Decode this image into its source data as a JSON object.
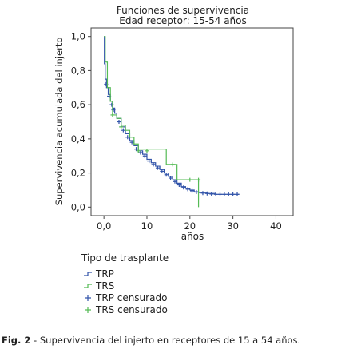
{
  "chart_data": {
    "type": "line",
    "title": "Funciones de supervivencia",
    "subtitle": "Edad receptor: 15-54 años",
    "xlabel": "años",
    "ylabel": "Supervivencia acumulada del injerto",
    "xlim": [
      -3,
      44
    ],
    "ylim": [
      -0.05,
      1.05
    ],
    "xticks": [
      0,
      10,
      20,
      30,
      40
    ],
    "xtick_labels": [
      "0,0",
      "10",
      "20",
      "30",
      "40"
    ],
    "yticks": [
      0.0,
      0.2,
      0.4,
      0.6,
      0.8,
      1.0
    ],
    "ytick_labels": [
      "0,0",
      "0,2",
      "0,4",
      "0,6",
      "0,8",
      "1,0"
    ],
    "grid": false,
    "legend_title": "Tipo de trasplante",
    "legend_position": "bottom-left",
    "series": [
      {
        "name": "TRP",
        "style": "step",
        "color": "#3355aa",
        "points": [
          [
            0,
            1.0
          ],
          [
            0.1,
            0.84
          ],
          [
            0.3,
            0.75
          ],
          [
            0.6,
            0.7
          ],
          [
            1,
            0.66
          ],
          [
            1.5,
            0.62
          ],
          [
            2,
            0.58
          ],
          [
            2.5,
            0.55
          ],
          [
            3,
            0.52
          ],
          [
            4,
            0.47
          ],
          [
            5,
            0.43
          ],
          [
            6,
            0.39
          ],
          [
            7,
            0.36
          ],
          [
            8,
            0.33
          ],
          [
            9,
            0.31
          ],
          [
            10,
            0.28
          ],
          [
            11,
            0.26
          ],
          [
            12,
            0.24
          ],
          [
            13,
            0.22
          ],
          [
            14,
            0.2
          ],
          [
            15,
            0.18
          ],
          [
            16,
            0.16
          ],
          [
            17,
            0.14
          ],
          [
            18,
            0.12
          ],
          [
            19,
            0.11
          ],
          [
            20,
            0.1
          ],
          [
            21,
            0.09
          ],
          [
            22,
            0.085
          ],
          [
            24,
            0.08
          ],
          [
            26,
            0.075
          ],
          [
            31.5,
            0.075
          ]
        ],
        "censored": [
          [
            0.5,
            0.72
          ],
          [
            1.2,
            0.65
          ],
          [
            1.8,
            0.6
          ],
          [
            2.2,
            0.57
          ],
          [
            3.5,
            0.5
          ],
          [
            4.5,
            0.45
          ],
          [
            5.5,
            0.41
          ],
          [
            6.5,
            0.38
          ],
          [
            7.5,
            0.34
          ],
          [
            8.5,
            0.32
          ],
          [
            9.5,
            0.3
          ],
          [
            10.5,
            0.27
          ],
          [
            11.5,
            0.25
          ],
          [
            12.5,
            0.23
          ],
          [
            13.5,
            0.21
          ],
          [
            14.5,
            0.19
          ],
          [
            15.5,
            0.17
          ],
          [
            16.5,
            0.15
          ],
          [
            17.5,
            0.13
          ],
          [
            18.5,
            0.115
          ],
          [
            19.5,
            0.105
          ],
          [
            20.5,
            0.095
          ],
          [
            21.5,
            0.088
          ],
          [
            23,
            0.082
          ],
          [
            24,
            0.08
          ],
          [
            25,
            0.077
          ],
          [
            26,
            0.075
          ],
          [
            27,
            0.075
          ],
          [
            28,
            0.075
          ],
          [
            29,
            0.075
          ],
          [
            30,
            0.075
          ],
          [
            31,
            0.075
          ]
        ]
      },
      {
        "name": "TRS",
        "style": "step",
        "color": "#55bb55",
        "points": [
          [
            0,
            1.0
          ],
          [
            0.3,
            0.85
          ],
          [
            0.8,
            0.7
          ],
          [
            1.5,
            0.62
          ],
          [
            2,
            0.54
          ],
          [
            3,
            0.52
          ],
          [
            4,
            0.48
          ],
          [
            5,
            0.45
          ],
          [
            6,
            0.41
          ],
          [
            7,
            0.37
          ],
          [
            8,
            0.34
          ],
          [
            10,
            0.34
          ],
          [
            14,
            0.34
          ],
          [
            14.5,
            0.25
          ],
          [
            16,
            0.25
          ],
          [
            17,
            0.16
          ],
          [
            19,
            0.16
          ],
          [
            22,
            0.16
          ],
          [
            22,
            0.0
          ]
        ],
        "censored": [
          [
            2,
            0.54
          ],
          [
            4,
            0.47
          ],
          [
            8,
            0.33
          ],
          [
            10,
            0.33
          ],
          [
            16,
            0.25
          ],
          [
            20,
            0.16
          ],
          [
            22,
            0.16
          ]
        ]
      }
    ]
  },
  "legend": {
    "title": "Tipo de trasplante",
    "items": [
      {
        "label": "TRP",
        "color": "#3355aa",
        "kind": "line"
      },
      {
        "label": "TRS",
        "color": "#55bb55",
        "kind": "line"
      },
      {
        "label": "TRP censurado",
        "color": "#3355aa",
        "kind": "marker"
      },
      {
        "label": "TRS censurado",
        "color": "#55bb55",
        "kind": "marker"
      }
    ]
  },
  "caption": {
    "label": "Fig. 2",
    "text": " - Supervivencia del injerto en receptores de 15 a 54 años."
  }
}
